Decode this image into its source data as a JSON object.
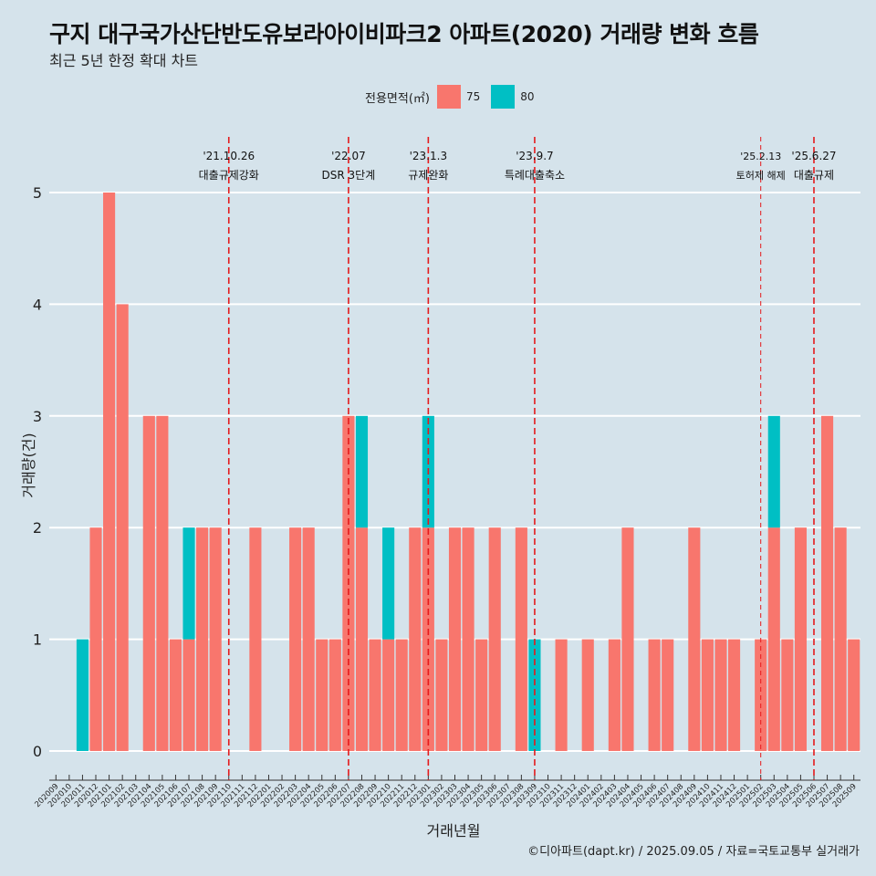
{
  "title": "구지 대구국가산단반도유보라아이비파크2 아파트(2020) 거래량 변화 흐름",
  "subtitle": "최근 5년 한정 확대 차트",
  "caption": "©디아파트(dapt.kr) / 2025.09.05 / 자료=국토교통부 실거래가",
  "colors": {
    "background": "#d5e3eb",
    "area75": "#f8766d",
    "area80": "#00bfc4",
    "event_line": "#e41a1c",
    "grid": "#ffffff"
  },
  "chart_data": {
    "type": "bar",
    "stacked": true,
    "xlabel": "거래년월",
    "ylabel": "거래량(건)",
    "ylim": [
      0,
      5
    ],
    "yticks": [
      0,
      1,
      2,
      3,
      4,
      5
    ],
    "grid": true,
    "legend": {
      "title": "전용면적(㎡)",
      "placement": "top-center"
    },
    "categories": [
      "202009",
      "202010",
      "202011",
      "202012",
      "202101",
      "202102",
      "202103",
      "202104",
      "202105",
      "202106",
      "202107",
      "202108",
      "202109",
      "202110",
      "202111",
      "202112",
      "202201",
      "202202",
      "202203",
      "202204",
      "202205",
      "202206",
      "202207",
      "202208",
      "202209",
      "202210",
      "202211",
      "202212",
      "202301",
      "202302",
      "202303",
      "202304",
      "202305",
      "202306",
      "202307",
      "202308",
      "202309",
      "202310",
      "202311",
      "202312",
      "202401",
      "202402",
      "202403",
      "202404",
      "202405",
      "202406",
      "202407",
      "202408",
      "202409",
      "202410",
      "202411",
      "202412",
      "202501",
      "202502",
      "202503",
      "202504",
      "202505",
      "202506",
      "202507",
      "202508",
      "202509"
    ],
    "series": [
      {
        "name": "75",
        "color": "#f8766d",
        "values": [
          0,
          0,
          0,
          2,
          5,
          4,
          0,
          3,
          3,
          1,
          1,
          2,
          2,
          0,
          0,
          2,
          0,
          0,
          2,
          2,
          1,
          1,
          3,
          2,
          1,
          1,
          1,
          2,
          2,
          1,
          2,
          2,
          1,
          2,
          0,
          2,
          0,
          0,
          1,
          0,
          1,
          0,
          1,
          2,
          0,
          1,
          1,
          0,
          2,
          1,
          1,
          1,
          0,
          1,
          2,
          1,
          2,
          0,
          3,
          2,
          1
        ]
      },
      {
        "name": "80",
        "color": "#00bfc4",
        "values": [
          0,
          0,
          1,
          0,
          0,
          0,
          0,
          0,
          0,
          0,
          1,
          0,
          0,
          0,
          0,
          0,
          0,
          0,
          0,
          0,
          0,
          0,
          0,
          1,
          0,
          1,
          0,
          0,
          1,
          0,
          0,
          0,
          0,
          0,
          0,
          0,
          1,
          0,
          0,
          0,
          0,
          0,
          0,
          0,
          0,
          0,
          0,
          0,
          0,
          0,
          0,
          0,
          0,
          0,
          1,
          0,
          0,
          0,
          0,
          0,
          0
        ]
      }
    ],
    "events": [
      {
        "date": "'21.10.26",
        "label": "대출규제강화",
        "at": "202110",
        "dashed": "long"
      },
      {
        "date": "'22.07",
        "label": "DSR 3단계",
        "at": "202207",
        "dashed": "long"
      },
      {
        "date": "'23.1.3",
        "label": "규제완화",
        "at": "202301",
        "dashed": "long"
      },
      {
        "date": "'23.9.7",
        "label": "특례대출축소",
        "at": "202309",
        "dashed": "long"
      },
      {
        "date": "'25.2.13",
        "label": "토허제 해제",
        "at": "202502",
        "dashed": "short"
      },
      {
        "date": "'25.6.27",
        "label": "대출규제",
        "at": "202506",
        "dashed": "long"
      }
    ]
  }
}
